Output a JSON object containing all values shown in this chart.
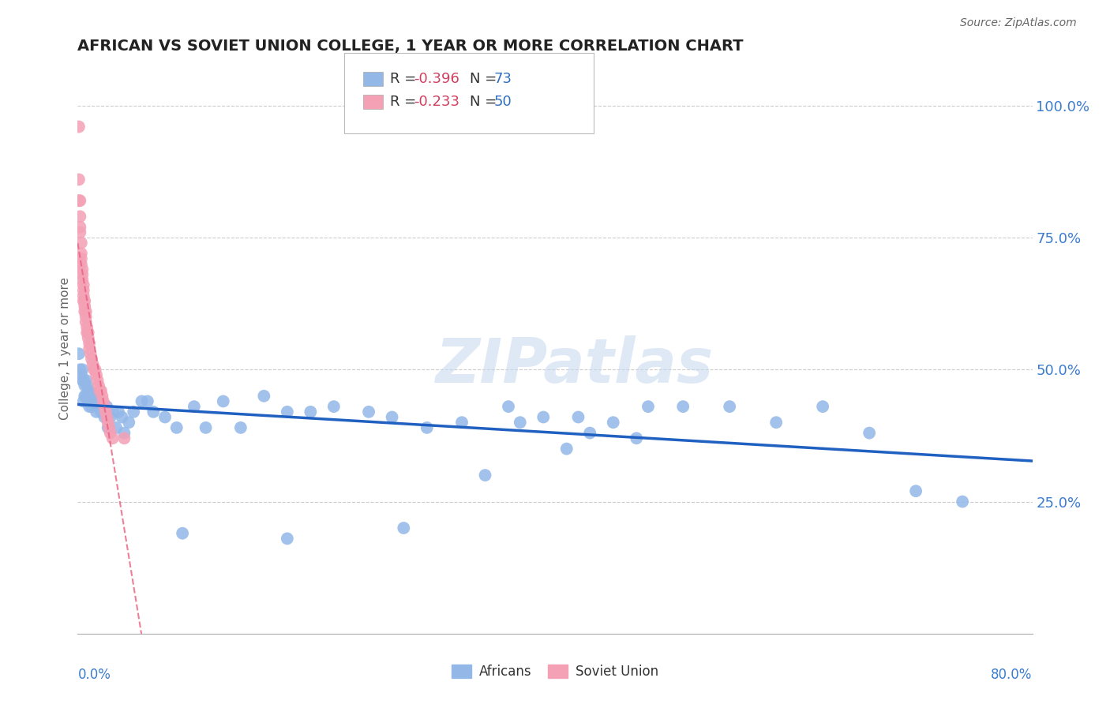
{
  "title": "AFRICAN VS SOVIET UNION COLLEGE, 1 YEAR OR MORE CORRELATION CHART",
  "source": "Source: ZipAtlas.com",
  "ylabel": "College, 1 year or more",
  "xlim": [
    0.0,
    0.82
  ],
  "ylim": [
    0.0,
    1.08
  ],
  "ytick_values": [
    0.25,
    0.5,
    0.75,
    1.0
  ],
  "grid_color": "#cccccc",
  "background_color": "#ffffff",
  "africans_color": "#93b8e8",
  "soviet_color": "#f4a0b5",
  "trendline_african_color": "#2060c0",
  "trendline_soviet_color": "#e86080",
  "R_african": -0.396,
  "N_african": 73,
  "R_soviet": -0.233,
  "N_soviet": 50,
  "legend_R_color": "#d04060",
  "legend_N_color": "#3070c0",
  "watermark": "ZIPatlas",
  "africans_x": [
    0.001,
    0.002,
    0.003,
    0.004,
    0.004,
    0.005,
    0.005,
    0.006,
    0.006,
    0.007,
    0.007,
    0.008,
    0.009,
    0.009,
    0.01,
    0.01,
    0.011,
    0.012,
    0.013,
    0.015,
    0.016,
    0.017,
    0.018,
    0.02,
    0.022,
    0.023,
    0.025,
    0.026,
    0.028,
    0.03,
    0.033,
    0.035,
    0.038,
    0.04,
    0.044,
    0.048,
    0.055,
    0.06,
    0.065,
    0.075,
    0.085,
    0.1,
    0.11,
    0.125,
    0.14,
    0.16,
    0.18,
    0.2,
    0.22,
    0.25,
    0.27,
    0.3,
    0.33,
    0.37,
    0.4,
    0.43,
    0.46,
    0.49,
    0.52,
    0.56,
    0.6,
    0.64,
    0.68,
    0.72,
    0.76,
    0.38,
    0.44,
    0.48,
    0.42,
    0.35,
    0.28,
    0.18,
    0.09
  ],
  "africans_y": [
    0.53,
    0.5,
    0.49,
    0.5,
    0.48,
    0.48,
    0.44,
    0.47,
    0.45,
    0.48,
    0.45,
    0.47,
    0.46,
    0.44,
    0.46,
    0.43,
    0.45,
    0.43,
    0.44,
    0.45,
    0.42,
    0.43,
    0.44,
    0.42,
    0.42,
    0.41,
    0.43,
    0.39,
    0.41,
    0.42,
    0.39,
    0.42,
    0.41,
    0.38,
    0.4,
    0.42,
    0.44,
    0.44,
    0.42,
    0.41,
    0.39,
    0.43,
    0.39,
    0.44,
    0.39,
    0.45,
    0.42,
    0.42,
    0.43,
    0.42,
    0.41,
    0.39,
    0.4,
    0.43,
    0.41,
    0.41,
    0.4,
    0.43,
    0.43,
    0.43,
    0.4,
    0.43,
    0.38,
    0.27,
    0.25,
    0.4,
    0.38,
    0.37,
    0.35,
    0.3,
    0.2,
    0.18,
    0.19
  ],
  "soviet_x": [
    0.001,
    0.001,
    0.001,
    0.002,
    0.002,
    0.002,
    0.002,
    0.003,
    0.003,
    0.003,
    0.003,
    0.004,
    0.004,
    0.004,
    0.005,
    0.005,
    0.005,
    0.005,
    0.006,
    0.006,
    0.006,
    0.007,
    0.007,
    0.007,
    0.008,
    0.008,
    0.009,
    0.009,
    0.01,
    0.01,
    0.011,
    0.012,
    0.013,
    0.014,
    0.015,
    0.016,
    0.017,
    0.018,
    0.019,
    0.02,
    0.021,
    0.022,
    0.023,
    0.024,
    0.025,
    0.026,
    0.027,
    0.028,
    0.03,
    0.04
  ],
  "soviet_y": [
    0.96,
    0.86,
    0.82,
    0.82,
    0.79,
    0.77,
    0.76,
    0.74,
    0.72,
    0.71,
    0.7,
    0.69,
    0.68,
    0.67,
    0.66,
    0.65,
    0.64,
    0.63,
    0.63,
    0.62,
    0.61,
    0.61,
    0.6,
    0.59,
    0.58,
    0.57,
    0.57,
    0.56,
    0.55,
    0.54,
    0.53,
    0.52,
    0.51,
    0.5,
    0.5,
    0.49,
    0.48,
    0.47,
    0.46,
    0.46,
    0.45,
    0.44,
    0.43,
    0.42,
    0.41,
    0.4,
    0.39,
    0.38,
    0.37,
    0.37
  ]
}
